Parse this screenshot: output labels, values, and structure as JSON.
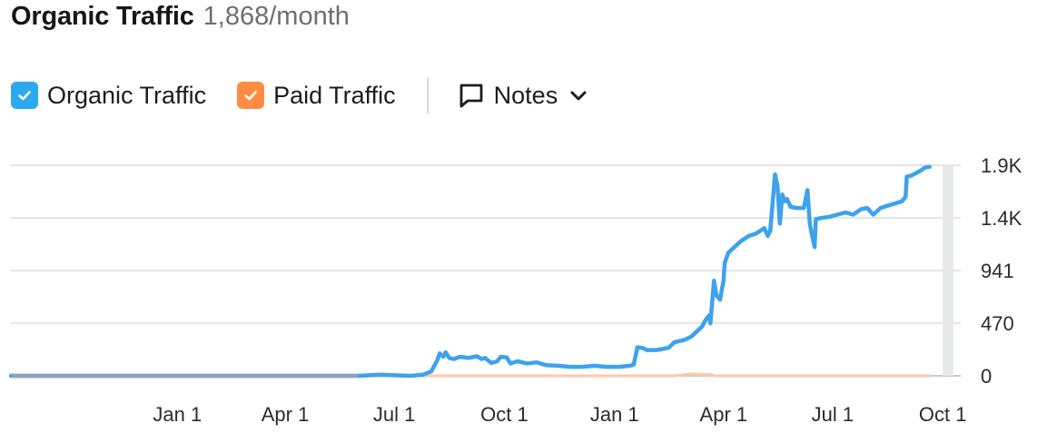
{
  "header": {
    "title": "Organic Traffic",
    "subtitle": "1,868/month"
  },
  "legend": {
    "items": [
      {
        "label": "Organic Traffic",
        "checked": true,
        "color": "#2aa8f0"
      },
      {
        "label": "Paid Traffic",
        "checked": true,
        "color": "#ff8c42"
      }
    ],
    "notes_label": "Notes"
  },
  "colors": {
    "organic_line": "#3ea2ec",
    "paid_line": "#ffc7a8",
    "grid": "#e4e5e7",
    "axis": "#c9cbd0",
    "selection_band": "#e6e9ea"
  },
  "chart_data": {
    "type": "line",
    "title": "",
    "xlabel": "",
    "ylabel": "",
    "x_tick_labels": [
      "Jan 1",
      "Apr 1",
      "Jul 1",
      "Oct 1",
      "Jan 1",
      "Apr 1",
      "Jul 1",
      "Oct 1"
    ],
    "y_tick_labels": [
      "0",
      "470",
      "941",
      "1.4K",
      "1.9K"
    ],
    "y_tick_values": [
      0,
      470,
      941,
      1411,
      1882
    ],
    "ylim": [
      0,
      1882
    ],
    "grid": true,
    "series": [
      {
        "name": "Organic Traffic",
        "points": [
          [
            "2022-08-15",
            0
          ],
          [
            "2023-06-01",
            0
          ],
          [
            "2023-06-20",
            10
          ],
          [
            "2023-07-01",
            5
          ],
          [
            "2023-07-15",
            0
          ],
          [
            "2023-07-25",
            10
          ],
          [
            "2023-08-01",
            40
          ],
          [
            "2023-08-06",
            140
          ],
          [
            "2023-08-08",
            200
          ],
          [
            "2023-08-11",
            170
          ],
          [
            "2023-08-13",
            210
          ],
          [
            "2023-08-16",
            160
          ],
          [
            "2023-08-20",
            150
          ],
          [
            "2023-08-25",
            170
          ],
          [
            "2023-09-01",
            160
          ],
          [
            "2023-09-08",
            175
          ],
          [
            "2023-09-12",
            150
          ],
          [
            "2023-09-15",
            160
          ],
          [
            "2023-09-20",
            115
          ],
          [
            "2023-09-25",
            130
          ],
          [
            "2023-09-28",
            170
          ],
          [
            "2023-10-03",
            165
          ],
          [
            "2023-10-06",
            110
          ],
          [
            "2023-10-12",
            130
          ],
          [
            "2023-10-20",
            110
          ],
          [
            "2023-10-28",
            120
          ],
          [
            "2023-11-05",
            95
          ],
          [
            "2023-11-15",
            90
          ],
          [
            "2023-11-25",
            80
          ],
          [
            "2023-12-05",
            80
          ],
          [
            "2023-12-15",
            90
          ],
          [
            "2023-12-25",
            80
          ],
          [
            "2024-01-05",
            80
          ],
          [
            "2024-01-14",
            90
          ],
          [
            "2024-01-17",
            100
          ],
          [
            "2024-01-20",
            255
          ],
          [
            "2024-01-24",
            250
          ],
          [
            "2024-01-28",
            230
          ],
          [
            "2024-02-05",
            230
          ],
          [
            "2024-02-15",
            250
          ],
          [
            "2024-02-20",
            300
          ],
          [
            "2024-02-28",
            320
          ],
          [
            "2024-03-05",
            350
          ],
          [
            "2024-03-10",
            400
          ],
          [
            "2024-03-14",
            440
          ],
          [
            "2024-03-17",
            500
          ],
          [
            "2024-03-20",
            540
          ],
          [
            "2024-03-21",
            470
          ],
          [
            "2024-03-24",
            850
          ],
          [
            "2024-03-26",
            720
          ],
          [
            "2024-03-29",
            680
          ],
          [
            "2024-04-01",
            850
          ],
          [
            "2024-04-02",
            1010
          ],
          [
            "2024-04-05",
            1100
          ],
          [
            "2024-04-10",
            1150
          ],
          [
            "2024-04-15",
            1200
          ],
          [
            "2024-04-22",
            1250
          ],
          [
            "2024-04-28",
            1270
          ],
          [
            "2024-05-05",
            1320
          ],
          [
            "2024-05-08",
            1250
          ],
          [
            "2024-05-10",
            1300
          ],
          [
            "2024-05-14",
            1800
          ],
          [
            "2024-05-16",
            1700
          ],
          [
            "2024-05-18",
            1360
          ],
          [
            "2024-05-20",
            1620
          ],
          [
            "2024-05-22",
            1560
          ],
          [
            "2024-05-24",
            1580
          ],
          [
            "2024-05-27",
            1510
          ],
          [
            "2024-06-01",
            1500
          ],
          [
            "2024-06-07",
            1500
          ],
          [
            "2024-06-10",
            1660
          ],
          [
            "2024-06-12",
            1360
          ],
          [
            "2024-06-14",
            1250
          ],
          [
            "2024-06-16",
            1150
          ],
          [
            "2024-06-17",
            1400
          ],
          [
            "2024-06-21",
            1410
          ],
          [
            "2024-06-28",
            1420
          ],
          [
            "2024-07-05",
            1440
          ],
          [
            "2024-07-12",
            1460
          ],
          [
            "2024-07-18",
            1440
          ],
          [
            "2024-07-25",
            1490
          ],
          [
            "2024-07-30",
            1500
          ],
          [
            "2024-08-04",
            1440
          ],
          [
            "2024-08-10",
            1500
          ],
          [
            "2024-08-16",
            1520
          ],
          [
            "2024-08-22",
            1540
          ],
          [
            "2024-08-28",
            1560
          ],
          [
            "2024-08-31",
            1600
          ],
          [
            "2024-09-01",
            1780
          ],
          [
            "2024-09-05",
            1790
          ],
          [
            "2024-09-12",
            1830
          ],
          [
            "2024-09-16",
            1860
          ],
          [
            "2024-09-20",
            1868
          ]
        ]
      },
      {
        "name": "Paid Traffic",
        "points": [
          [
            "2022-08-15",
            0
          ],
          [
            "2024-02-20",
            0
          ],
          [
            "2024-02-28",
            10
          ],
          [
            "2024-03-05",
            18
          ],
          [
            "2024-03-12",
            15
          ],
          [
            "2024-03-20",
            12
          ],
          [
            "2024-03-25",
            0
          ],
          [
            "2024-09-20",
            0
          ]
        ]
      }
    ]
  }
}
